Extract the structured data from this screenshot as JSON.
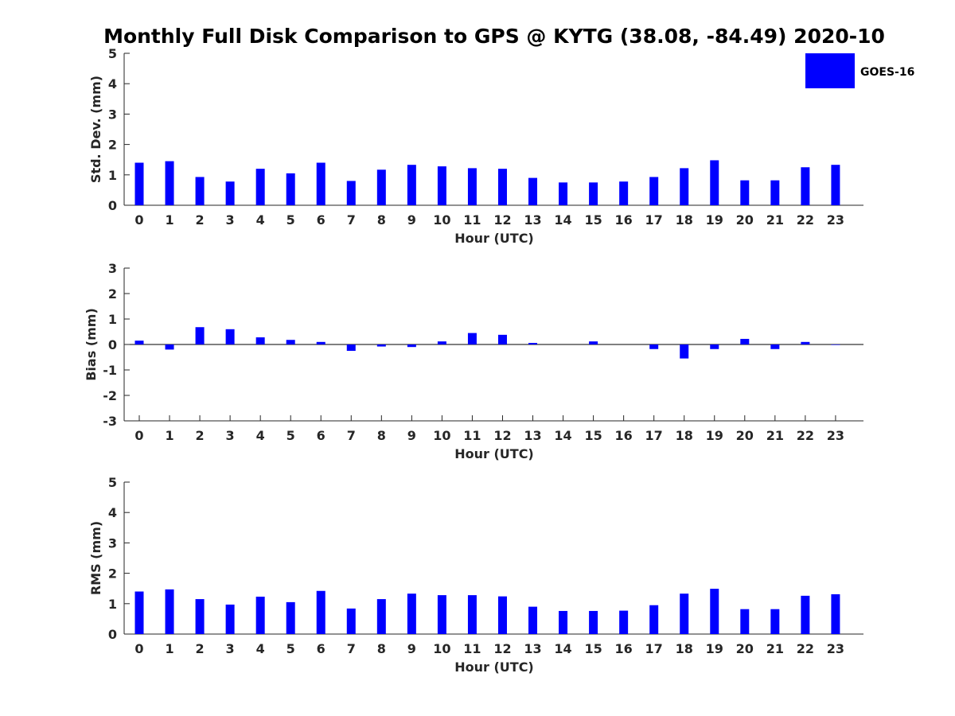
{
  "title": "Monthly Full Disk Comparison to GPS @ KYTG (38.08, -84.49) 2020-10",
  "colors": {
    "bar": "#0000ff",
    "axis": "#262626",
    "background": "#ffffff"
  },
  "legend": {
    "label": "GOES-16",
    "placement": "top-right"
  },
  "chart_data": [
    {
      "type": "bar",
      "id": "std",
      "xlabel": "Hour (UTC)",
      "ylabel": "Std. Dev. (mm)",
      "ylim": [
        0,
        5
      ],
      "yticks": [
        0,
        1,
        2,
        3,
        4,
        5
      ],
      "categories": [
        "0",
        "1",
        "2",
        "3",
        "4",
        "5",
        "6",
        "7",
        "8",
        "9",
        "10",
        "11",
        "12",
        "13",
        "14",
        "15",
        "16",
        "17",
        "18",
        "19",
        "20",
        "21",
        "22",
        "23"
      ],
      "series": [
        {
          "name": "GOES-16",
          "values": [
            1.4,
            1.45,
            0.93,
            0.78,
            1.2,
            1.05,
            1.4,
            0.8,
            1.17,
            1.33,
            1.28,
            1.22,
            1.2,
            0.9,
            0.75,
            0.75,
            0.78,
            0.93,
            1.22,
            1.48,
            0.82,
            0.82,
            1.25,
            1.33
          ]
        }
      ]
    },
    {
      "type": "bar",
      "id": "bias",
      "xlabel": "Hour (UTC)",
      "ylabel": "Bias (mm)",
      "ylim": [
        -3,
        3
      ],
      "yticks": [
        -3,
        -2,
        -1,
        0,
        1,
        2,
        3
      ],
      "categories": [
        "0",
        "1",
        "2",
        "3",
        "4",
        "5",
        "6",
        "7",
        "8",
        "9",
        "10",
        "11",
        "12",
        "13",
        "14",
        "15",
        "16",
        "17",
        "18",
        "19",
        "20",
        "21",
        "22",
        "23"
      ],
      "series": [
        {
          "name": "GOES-16",
          "values": [
            0.15,
            -0.2,
            0.68,
            0.6,
            0.28,
            0.18,
            0.1,
            -0.25,
            -0.08,
            -0.1,
            0.12,
            0.45,
            0.38,
            0.06,
            0.0,
            0.12,
            0.0,
            -0.18,
            -0.55,
            -0.18,
            0.22,
            -0.18,
            0.1,
            -0.02
          ]
        }
      ]
    },
    {
      "type": "bar",
      "id": "rms",
      "xlabel": "Hour (UTC)",
      "ylabel": "RMS (mm)",
      "ylim": [
        0,
        5
      ],
      "yticks": [
        0,
        1,
        2,
        3,
        4,
        5
      ],
      "categories": [
        "0",
        "1",
        "2",
        "3",
        "4",
        "5",
        "6",
        "7",
        "8",
        "9",
        "10",
        "11",
        "12",
        "13",
        "14",
        "15",
        "16",
        "17",
        "18",
        "19",
        "20",
        "21",
        "22",
        "23"
      ],
      "series": [
        {
          "name": "GOES-16",
          "values": [
            1.4,
            1.47,
            1.15,
            0.97,
            1.23,
            1.05,
            1.42,
            0.84,
            1.15,
            1.33,
            1.28,
            1.28,
            1.24,
            0.9,
            0.76,
            0.76,
            0.77,
            0.95,
            1.33,
            1.49,
            0.82,
            0.82,
            1.26,
            1.31
          ]
        }
      ]
    }
  ]
}
